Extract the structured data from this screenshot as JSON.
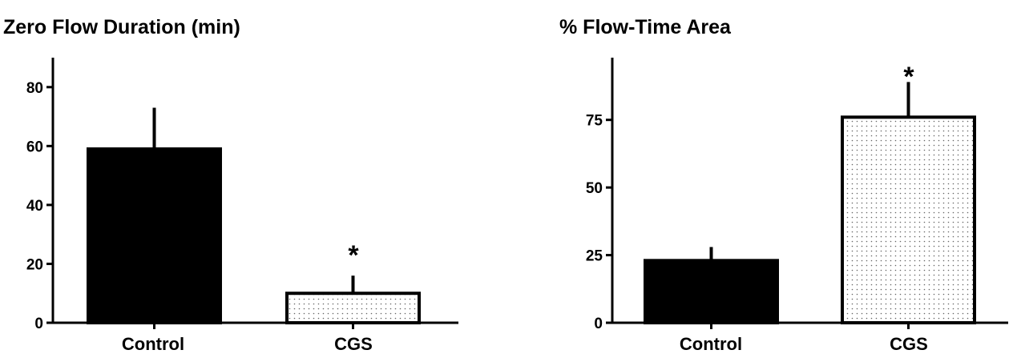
{
  "chart_data": [
    {
      "type": "bar",
      "title": "Zero  Flow  Duration (min)",
      "categories": [
        "Control",
        "CGS"
      ],
      "values": [
        59,
        10
      ],
      "error_upper": [
        73,
        16
      ],
      "bar_fills": [
        "solid-black",
        "dotted"
      ],
      "ylim": [
        0,
        90
      ],
      "yticks": [
        0,
        20,
        40,
        60,
        80
      ],
      "ytick_labels": [
        "0",
        "20",
        "40",
        "60",
        "80"
      ],
      "annotations": [
        {
          "category": "CGS",
          "text": "*"
        }
      ],
      "grid": false
    },
    {
      "type": "bar",
      "title": "% Flow-Time Area",
      "categories": [
        "Control",
        "CGS"
      ],
      "values": [
        23,
        76
      ],
      "error_upper": [
        28,
        89
      ],
      "bar_fills": [
        "solid-black",
        "dotted"
      ],
      "ylim": [
        0,
        98
      ],
      "yticks": [
        0,
        25,
        50,
        75
      ],
      "ytick_labels": [
        "0",
        "25",
        "50",
        "75"
      ],
      "annotations": [
        {
          "category": "CGS",
          "text": "*"
        }
      ],
      "grid": false
    }
  ]
}
